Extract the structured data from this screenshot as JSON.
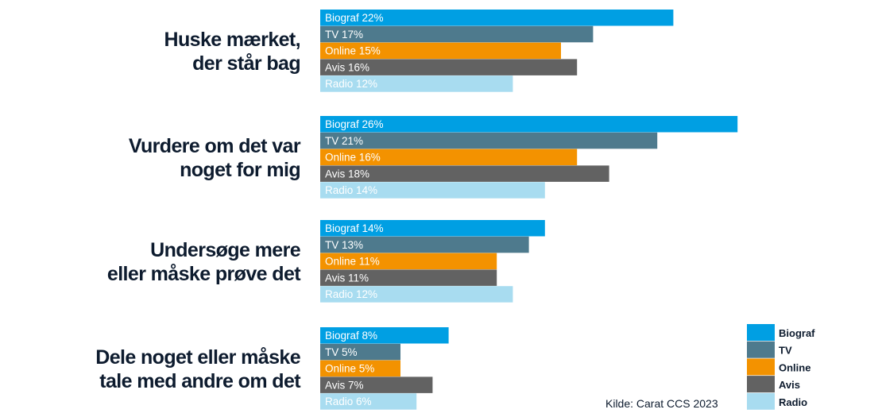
{
  "chart_data": {
    "type": "bar",
    "orientation": "horizontal",
    "categories": [
      [
        "Huske mærket,",
        "der står bag"
      ],
      [
        "Vurdere om det var",
        "noget for mig"
      ],
      [
        "Undersøge mere",
        "eller måske prøve det"
      ],
      [
        "Dele noget eller måske",
        "tale med andre om det"
      ]
    ],
    "series": [
      {
        "name": "Biograf",
        "color": "#009fe3",
        "values": [
          22,
          26,
          14,
          8
        ]
      },
      {
        "name": "TV",
        "color": "#4e7a8d",
        "values": [
          17,
          21,
          13,
          5
        ]
      },
      {
        "name": "Online",
        "color": "#f39200",
        "values": [
          15,
          16,
          11,
          5
        ]
      },
      {
        "name": "Avis",
        "color": "#626262",
        "values": [
          16,
          18,
          11,
          7
        ]
      },
      {
        "name": "Radio",
        "color": "#a8dcf0",
        "values": [
          12,
          14,
          12,
          6
        ]
      }
    ],
    "value_suffix": "%",
    "legend_position": "bottom-right",
    "grid": false,
    "source": "Kilde: Carat CCS 2023"
  }
}
